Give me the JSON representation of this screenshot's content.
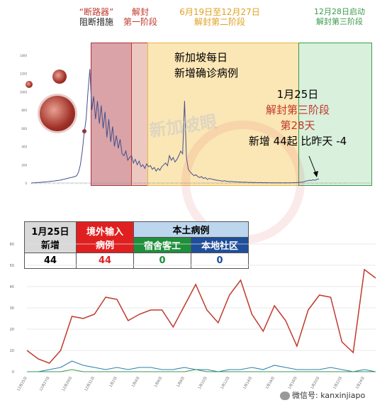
{
  "colors": {
    "red": "#c0392b",
    "green": "#3a9a4c",
    "orange": "#e0a020",
    "blue": "#1f4e9a",
    "phase_red_fill": "#d9a3a8",
    "phase_yellow_fill": "#fbe6b5",
    "phase_green_fill": "#d9f0dc"
  },
  "top_chart": {
    "phase_labels": {
      "breaker_line1": "“断路器”",
      "breaker_line2": "阻断措施",
      "phase1_line1": "解封",
      "phase1_line2": "第一阶段",
      "phase2_line1": "6月19日至12月27日",
      "phase2_line2": "解封第二阶段",
      "phase3_line1": "12月28日启动",
      "phase3_line2": "解封第三阶段"
    },
    "title_line1": "新加坡每日",
    "title_line2": "新增确诊病例",
    "note_date": "1月25日",
    "note_phase": "解封第三阶段",
    "note_day": "第28天",
    "note_count": "新增 44起 比昨天 -4",
    "watermark": "新加坡眼",
    "yticks": [
      "0",
      "200",
      "400",
      "600",
      "800",
      "1000",
      "1200",
      "1400"
    ]
  },
  "summary": {
    "date_line1": "1月25日",
    "date_line2": "新增",
    "imported_line1": "境外输入",
    "imported_line2": "病例",
    "local_header": "本土病例",
    "dorm_header": "宿舍客工",
    "community_header": "本地社区",
    "total_value": "44",
    "imported_value": "44",
    "dorm_value": "0",
    "community_value": "0"
  },
  "bottom_chart": {
    "yticks": [
      "0",
      "10",
      "20",
      "30",
      "40",
      "50",
      "60"
    ],
    "xtick_labels": [
      "12月25日",
      "12月27日",
      "12月29日",
      "12月31日",
      "1月2日",
      "1月4日",
      "1月6日",
      "1月8日",
      "1月10日",
      "1月12日",
      "1月14日",
      "1月16日",
      "1月18日",
      "1月20日",
      "1月22日",
      "1月24日"
    ]
  },
  "footer": {
    "wechat_text": "微信号: kanxinjiapo"
  },
  "chart_data": [
    {
      "type": "line",
      "title": "新加坡每日新增确诊病例",
      "ylim": [
        0,
        1400
      ],
      "x_range": [
        "2月",
        "1月25日"
      ],
      "series": [
        {
          "values": [
            0,
            2,
            3,
            5,
            6,
            8,
            10,
            12,
            14,
            15,
            18,
            20,
            22,
            25,
            28,
            30,
            35,
            40,
            45,
            50,
            55,
            60,
            65,
            70,
            80,
            120,
            200,
            350,
            550,
            700,
            1000,
            1250,
            800,
            950,
            700,
            900,
            650,
            850,
            600,
            780,
            500,
            700,
            450,
            620,
            400,
            520,
            380,
            480,
            320,
            300,
            350,
            250,
            280,
            300,
            220,
            260,
            200,
            240,
            180,
            200,
            160,
            210,
            180,
            190,
            150,
            170,
            130,
            160,
            140,
            180,
            200,
            220,
            190,
            300,
            250,
            280,
            230,
            260,
            300,
            350,
            320,
            900,
            280,
            150,
            120,
            100,
            80,
            90,
            70,
            60,
            70,
            50,
            60,
            40,
            50,
            45,
            40,
            35,
            30,
            30,
            25,
            20,
            25,
            20,
            18,
            15,
            18,
            12,
            15,
            10,
            12,
            10,
            8,
            10,
            8,
            6,
            8,
            5,
            6,
            5,
            4,
            5,
            4,
            3,
            4,
            3,
            3,
            2,
            3,
            2,
            2,
            3,
            2,
            2,
            3,
            2,
            2,
            3,
            3,
            4,
            5,
            6,
            8,
            10,
            14,
            20,
            25,
            30,
            28,
            35,
            30,
            40,
            44
          ]
        }
      ]
    },
    {
      "type": "line",
      "ylim": [
        0,
        60
      ],
      "categories": [
        "12月25日",
        "12月26日",
        "12月27日",
        "12月28日",
        "12月29日",
        "12月30日",
        "12月31日",
        "1月1日",
        "1月2日",
        "1月3日",
        "1月4日",
        "1月5日",
        "1月6日",
        "1月7日",
        "1月8日",
        "1月9日",
        "1月10日",
        "1月11日",
        "1月12日",
        "1月13日",
        "1月14日",
        "1月15日",
        "1月16日",
        "1月17日",
        "1月18日",
        "1月19日",
        "1月20日",
        "1月21日",
        "1月22日",
        "1月23日",
        "1月24日",
        "1月25日"
      ],
      "series": [
        {
          "color": "#c0392b",
          "values": [
            10,
            6,
            4,
            10,
            26,
            25,
            27,
            35,
            34,
            24,
            27,
            29,
            29,
            21,
            31,
            41,
            29,
            23,
            36,
            43,
            27,
            19,
            31,
            24,
            12,
            29,
            36,
            35,
            14,
            9,
            48,
            44
          ]
        },
        {
          "color": "#2f7fb0",
          "values": [
            0,
            0,
            1,
            2,
            5,
            3,
            2,
            1,
            2,
            1,
            2,
            2,
            1,
            1,
            2,
            1,
            1,
            0,
            1,
            1,
            2,
            1,
            3,
            2,
            1,
            1,
            1,
            2,
            1,
            0,
            1,
            0
          ]
        },
        {
          "color": "#3a9a4c",
          "values": [
            0,
            0,
            0,
            0,
            1,
            0,
            0,
            0,
            0,
            0,
            0,
            0,
            0,
            0,
            0,
            1,
            0,
            0,
            0,
            0,
            0,
            0,
            0,
            0,
            0,
            0,
            0,
            0,
            0,
            0,
            0,
            0
          ]
        }
      ]
    }
  ]
}
